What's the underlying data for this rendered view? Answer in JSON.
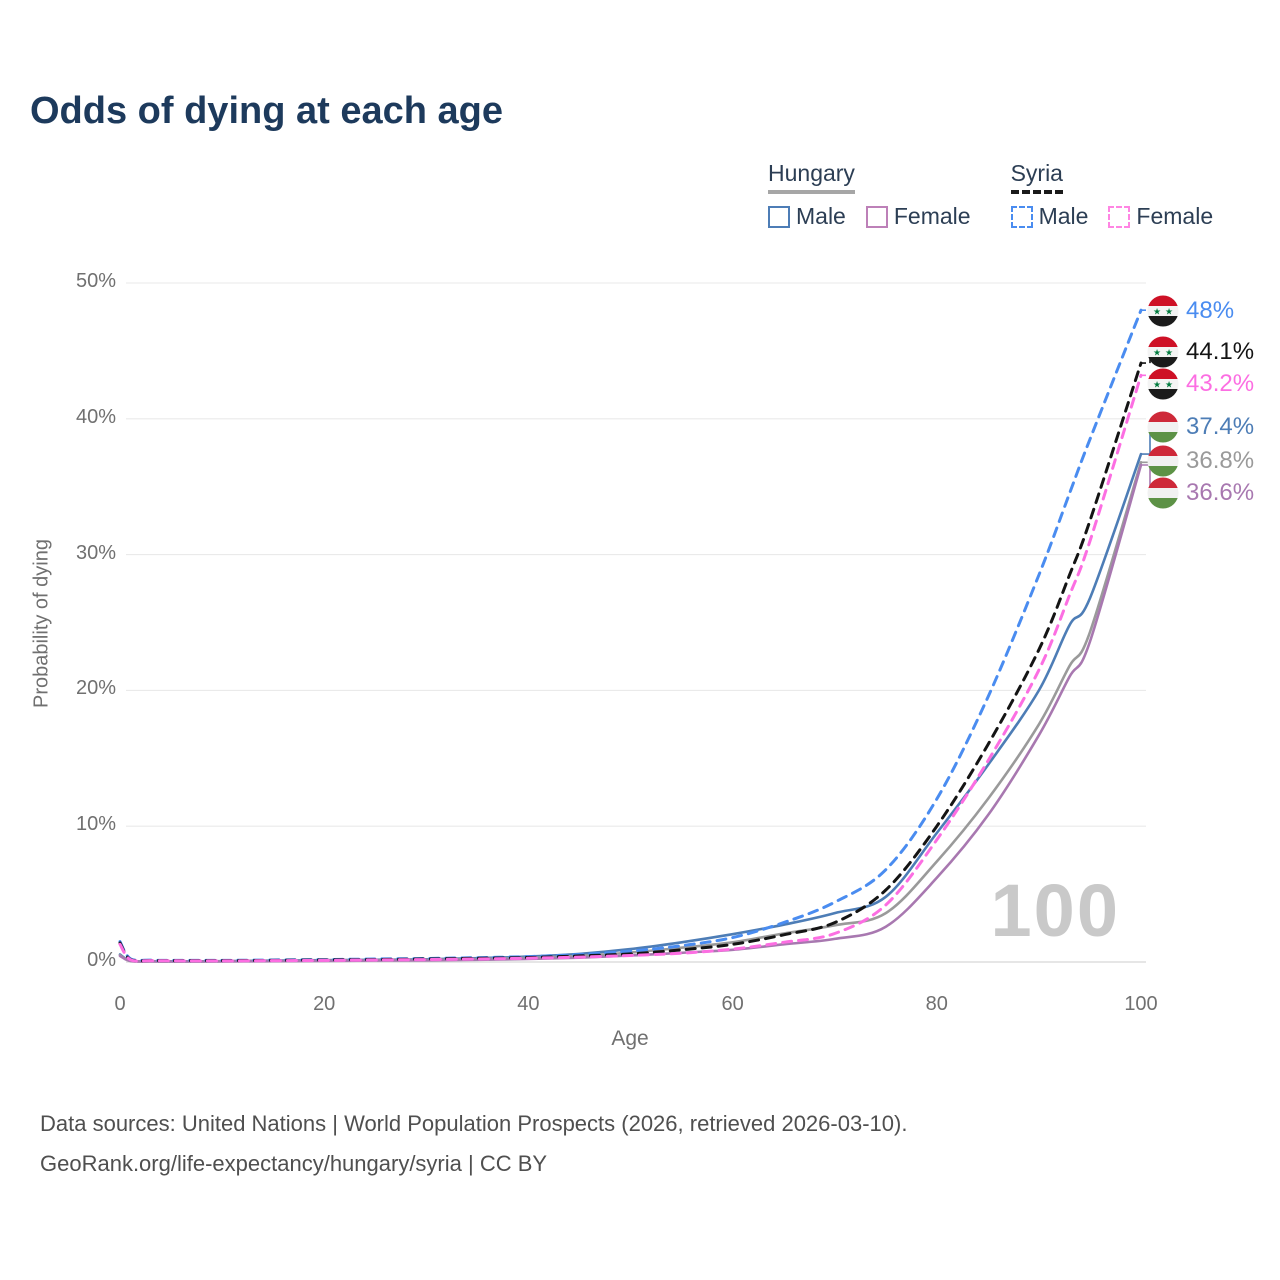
{
  "title": "Odds of dying at each age",
  "legend": {
    "groups": [
      {
        "name": "Hungary",
        "line_style": "solid",
        "underline_color": "#a6a6a6",
        "items": [
          {
            "label": "Male",
            "color": "#4d7db6",
            "dashed": false
          },
          {
            "label": "Female",
            "color": "#bd80b8",
            "dashed": false
          }
        ]
      },
      {
        "name": "Syria",
        "line_style": "dashed",
        "underline_color": "#1a1a1a",
        "items": [
          {
            "label": "Male",
            "color": "#4a8cf0",
            "dashed": true
          },
          {
            "label": "Female",
            "color": "#ff85e3",
            "dashed": true
          }
        ]
      }
    ]
  },
  "chart_data": {
    "type": "line",
    "xlabel": "Age",
    "ylabel": "Probability of dying",
    "xlim": [
      0,
      100
    ],
    "ylim": [
      0,
      50
    ],
    "xticks": [
      "0",
      "20",
      "40",
      "60",
      "80",
      "100"
    ],
    "yticks": [
      "0%",
      "10%",
      "20%",
      "30%",
      "40%",
      "50%"
    ],
    "grid": "horizontal",
    "watermark": "100",
    "x": [
      0,
      1,
      3,
      5,
      10,
      15,
      20,
      25,
      30,
      35,
      40,
      45,
      50,
      55,
      60,
      65,
      70,
      75,
      80,
      85,
      90,
      93,
      95,
      100
    ],
    "series": [
      {
        "name": "Syria Male",
        "country": "Syria",
        "sex": "Male",
        "color": "#4a8cf0",
        "dashed": true,
        "end_label": "48%",
        "values": [
          1.5,
          0.25,
          0.14,
          0.12,
          0.12,
          0.15,
          0.18,
          0.22,
          0.26,
          0.32,
          0.4,
          0.55,
          0.8,
          1.2,
          1.8,
          2.9,
          4.4,
          6.8,
          12.0,
          19.5,
          28.5,
          34.5,
          38.5,
          48.0
        ]
      },
      {
        "name": "Syria Both sexes",
        "country": "Syria",
        "sex": "Both",
        "color": "#141414",
        "dashed": true,
        "end_label": "44.1%",
        "values": [
          1.4,
          0.2,
          0.11,
          0.1,
          0.1,
          0.12,
          0.15,
          0.18,
          0.22,
          0.27,
          0.33,
          0.45,
          0.6,
          0.9,
          1.3,
          2.0,
          2.9,
          5.3,
          10.0,
          16.0,
          23.0,
          28.5,
          32.5,
          44.1
        ]
      },
      {
        "name": "Syria Female",
        "country": "Syria",
        "sex": "Female",
        "color": "#fc6ee2",
        "dashed": true,
        "end_label": "43.2%",
        "values": [
          1.3,
          0.18,
          0.1,
          0.09,
          0.08,
          0.1,
          0.12,
          0.15,
          0.18,
          0.22,
          0.28,
          0.36,
          0.48,
          0.65,
          0.95,
          1.45,
          2.1,
          4.2,
          9.0,
          14.8,
          21.5,
          27.0,
          31.0,
          43.2
        ]
      },
      {
        "name": "Hungary Male",
        "country": "Hungary",
        "sex": "Male",
        "color": "#4d7db6",
        "dashed": false,
        "end_label": "37.4%",
        "values": [
          0.55,
          0.1,
          0.06,
          0.05,
          0.06,
          0.1,
          0.13,
          0.16,
          0.2,
          0.28,
          0.4,
          0.6,
          0.95,
          1.45,
          2.05,
          2.75,
          3.6,
          4.8,
          9.5,
          14.5,
          20.0,
          24.8,
          26.8,
          37.4
        ]
      },
      {
        "name": "Hungary Both sexes",
        "country": "Hungary",
        "sex": "Both",
        "color": "#9a9a9a",
        "dashed": false,
        "end_label": "36.8%",
        "values": [
          0.5,
          0.08,
          0.05,
          0.04,
          0.05,
          0.08,
          0.1,
          0.13,
          0.16,
          0.22,
          0.3,
          0.45,
          0.7,
          1.05,
          1.45,
          2.1,
          2.7,
          3.6,
          7.4,
          12.0,
          17.5,
          21.8,
          24.3,
          36.8
        ]
      },
      {
        "name": "Hungary Female",
        "country": "Hungary",
        "sex": "Female",
        "color": "#a878b0",
        "dashed": false,
        "end_label": "36.6%",
        "values": [
          0.45,
          0.07,
          0.04,
          0.04,
          0.04,
          0.06,
          0.08,
          0.1,
          0.12,
          0.16,
          0.22,
          0.32,
          0.48,
          0.68,
          0.9,
          1.3,
          1.7,
          2.6,
          6.2,
          10.8,
          16.7,
          21.0,
          23.6,
          36.6
        ]
      }
    ],
    "flag_colors": {
      "syria": {
        "top": "#CE1126",
        "mid": "#f4f4f4",
        "bottom": "#1b1b1b",
        "star": "#007A3D"
      },
      "hungary": {
        "top": "#ce2939",
        "mid": "#f1f1f1",
        "bottom": "#5d9246"
      }
    }
  },
  "footer": {
    "line1": "Data sources: United Nations | World Population Prospects (2026, retrieved 2026-03-10).",
    "line2": "GeoRank.org/life-expectancy/hungary/syria | CC BY"
  }
}
